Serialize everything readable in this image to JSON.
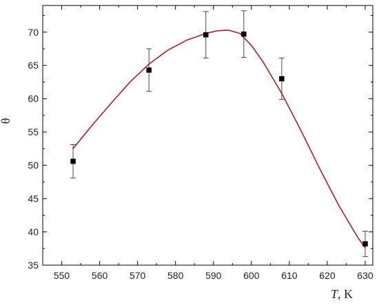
{
  "chart_data": {
    "type": "scatter",
    "title": "",
    "xlabel_var": "T",
    "xlabel_unit": ", K",
    "ylabel": "θ",
    "xlim": [
      545,
      632
    ],
    "ylim": [
      35,
      74
    ],
    "x_ticks": [
      550,
      560,
      570,
      580,
      590,
      600,
      610,
      620,
      630
    ],
    "y_ticks": [
      35,
      40,
      45,
      50,
      55,
      60,
      65,
      70
    ],
    "grid": false,
    "series": [
      {
        "kind": "points",
        "marker": "square",
        "color": "#000000",
        "points": [
          {
            "x": 553,
            "y": 50.6,
            "err": 2.5
          },
          {
            "x": 573,
            "y": 64.3,
            "err": 3.2
          },
          {
            "x": 588,
            "y": 69.6,
            "err": 3.5
          },
          {
            "x": 598,
            "y": 69.7,
            "err": 3.5
          },
          {
            "x": 608,
            "y": 63.0,
            "err": 3.1
          },
          {
            "x": 630,
            "y": 38.2,
            "err": 1.9
          }
        ]
      },
      {
        "kind": "curve",
        "color": "#b01c1c",
        "x": [
          553,
          558,
          563,
          568,
          573,
          578,
          583,
          588,
          591,
          594,
          597,
          600,
          603,
          608,
          613,
          618,
          623,
          628,
          630
        ],
        "y": [
          52.5,
          56.0,
          59.3,
          62.5,
          65.2,
          67.3,
          68.8,
          69.8,
          70.2,
          70.3,
          69.8,
          68.0,
          65.6,
          60.8,
          55.3,
          49.5,
          44.0,
          39.2,
          37.6
        ]
      }
    ]
  }
}
